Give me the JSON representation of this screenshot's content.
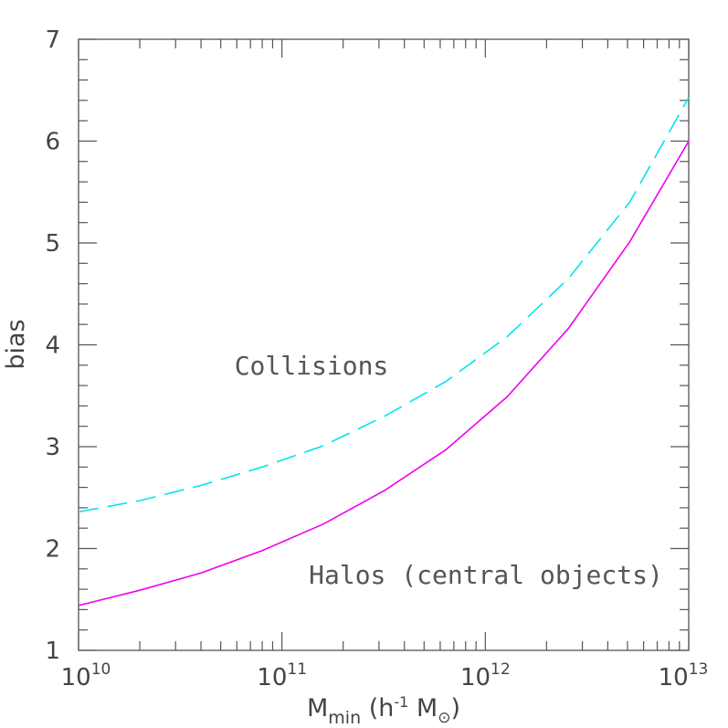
{
  "chart_data": {
    "type": "line",
    "xscale": "log",
    "xlim": [
      10000000000,
      10000000000000
    ],
    "ylim": [
      1,
      7
    ],
    "xticks": [
      {
        "value": 10000000000,
        "base": "10",
        "exp": "10"
      },
      {
        "value": 100000000000,
        "base": "10",
        "exp": "11"
      },
      {
        "value": 1000000000000,
        "base": "10",
        "exp": "12"
      },
      {
        "value": 10000000000000,
        "base": "10",
        "exp": "13"
      }
    ],
    "yticks": [
      "1",
      "2",
      "3",
      "4",
      "5",
      "6",
      "7"
    ],
    "xlabel": {
      "main": "M",
      "sub": "min",
      "rest": " (h",
      "sup": "-1",
      "rest2": " M",
      "sym_sub": "⊙",
      "close": ")"
    },
    "ylabel": "bias",
    "grid": false,
    "series": [
      {
        "name": "Collisions",
        "style": "dashed",
        "color": "#00e5ee",
        "x": [
          10000000000,
          20000000000,
          40000000000,
          80000000000,
          160000000000,
          320000000000,
          640000000000,
          1280000000000,
          2560000000000,
          5120000000000,
          10000000000000
        ],
        "y": [
          2.36,
          2.47,
          2.62,
          2.8,
          3.01,
          3.3,
          3.64,
          4.08,
          4.65,
          5.4,
          6.43
        ]
      },
      {
        "name": "Halos (central objects)",
        "style": "solid",
        "color": "#ee00ee",
        "x": [
          10000000000,
          20000000000,
          40000000000,
          80000000000,
          160000000000,
          320000000000,
          640000000000,
          1280000000000,
          2560000000000,
          5120000000000,
          10000000000000
        ],
        "y": [
          1.44,
          1.59,
          1.76,
          1.98,
          2.24,
          2.57,
          2.97,
          3.49,
          4.16,
          5.01,
          6.0
        ]
      }
    ]
  }
}
